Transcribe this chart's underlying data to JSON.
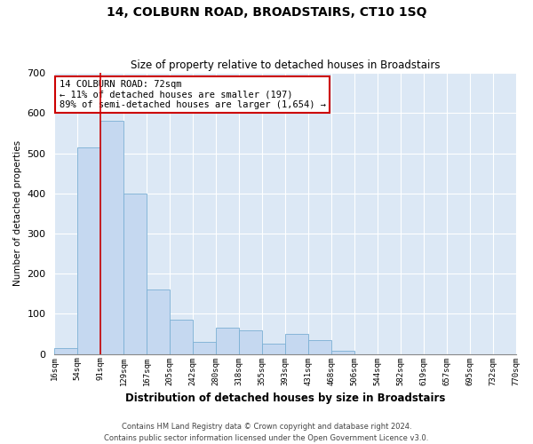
{
  "title": "14, COLBURN ROAD, BROADSTAIRS, CT10 1SQ",
  "subtitle": "Size of property relative to detached houses in Broadstairs",
  "xlabel": "Distribution of detached houses by size in Broadstairs",
  "ylabel": "Number of detached properties",
  "bar_values": [
    15,
    515,
    580,
    400,
    160,
    85,
    30,
    65,
    60,
    25,
    50,
    35,
    8,
    0,
    0,
    0,
    0,
    0,
    0,
    0
  ],
  "bin_labels": [
    "16sqm",
    "54sqm",
    "91sqm",
    "129sqm",
    "167sqm",
    "205sqm",
    "242sqm",
    "280sqm",
    "318sqm",
    "355sqm",
    "393sqm",
    "431sqm",
    "468sqm",
    "506sqm",
    "544sqm",
    "582sqm",
    "619sqm",
    "657sqm",
    "695sqm",
    "732sqm",
    "770sqm"
  ],
  "bar_color": "#c5d8f0",
  "bar_edge_color": "#7aafd4",
  "marker_color": "#cc0000",
  "annotation_text": "14 COLBURN ROAD: 72sqm\n← 11% of detached houses are smaller (197)\n89% of semi-detached houses are larger (1,654) →",
  "annotation_box_color": "#ffffff",
  "annotation_box_edge": "#cc0000",
  "ylim": [
    0,
    700
  ],
  "yticks": [
    0,
    100,
    200,
    300,
    400,
    500,
    600,
    700
  ],
  "grid_color": "#d0daea",
  "background_color": "#dce8f5",
  "footer_line1": "Contains HM Land Registry data © Crown copyright and database right 2024.",
  "footer_line2": "Contains public sector information licensed under the Open Government Licence v3.0."
}
